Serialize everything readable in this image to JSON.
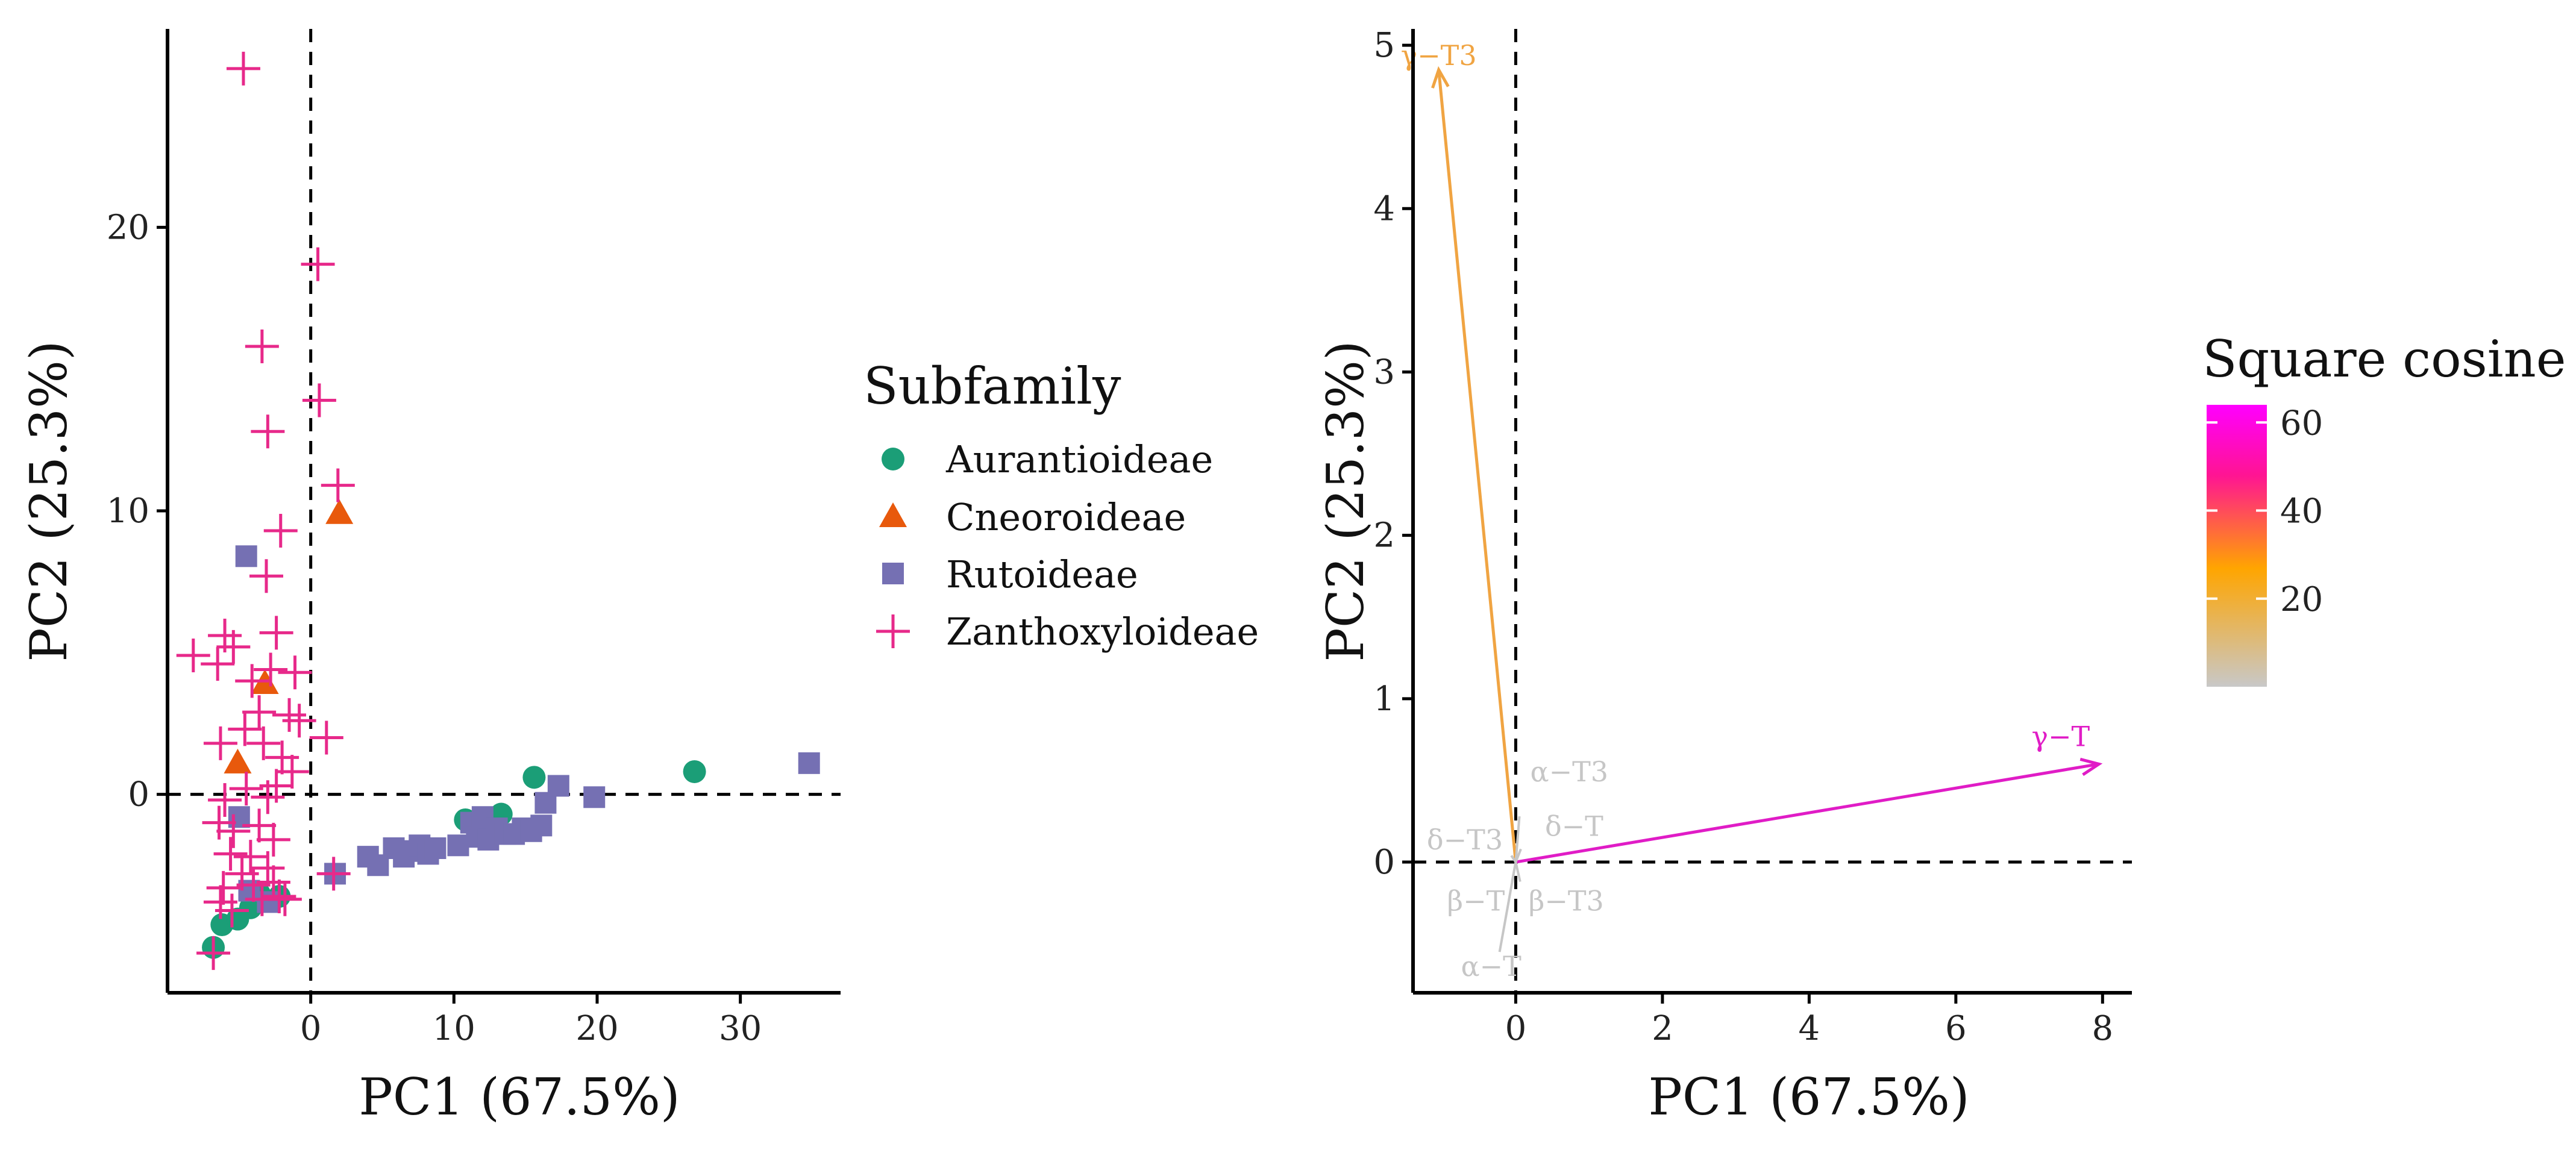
{
  "chart_data": [
    {
      "type": "scatter",
      "xlabel": "PC1 (67.5%)",
      "ylabel": "PC2 (25.3%)",
      "xlim": [
        -10,
        37
      ],
      "ylim": [
        -7,
        27
      ],
      "xticks": [
        0,
        10,
        20,
        30
      ],
      "yticks": [
        0,
        10,
        20
      ],
      "xtick_labels": [
        "0",
        "10",
        "20",
        "30"
      ],
      "ytick_labels": [
        "0",
        "10",
        "20"
      ],
      "reference_lines": {
        "x": 0,
        "y": 0
      },
      "legend": {
        "title": "Subfamily",
        "position": "right",
        "entries": [
          {
            "name": "Aurantioideae",
            "color": "#1b9e77",
            "marker": "circle"
          },
          {
            "name": "Cneoroideae",
            "color": "#e8590c",
            "marker": "triangle"
          },
          {
            "name": "Rutoideae",
            "color": "#7570b3",
            "marker": "square"
          },
          {
            "name": "Zanthoxyloideae",
            "color": "#e7298a",
            "marker": "plus"
          }
        ]
      },
      "series": [
        {
          "name": "Aurantioideae",
          "points": [
            [
              -6.8,
              -5.4
            ],
            [
              -6.2,
              -4.6
            ],
            [
              -5.1,
              -4.4
            ],
            [
              -4.2,
              -4.0
            ],
            [
              -3.6,
              -3.5
            ],
            [
              -2.2,
              -3.6
            ],
            [
              10.8,
              -0.9
            ],
            [
              13.3,
              -0.7
            ],
            [
              15.6,
              0.6
            ],
            [
              26.8,
              0.8
            ]
          ]
        },
        {
          "name": "Cneoroideae",
          "points": [
            [
              -5.1,
              1.1
            ],
            [
              -3.2,
              3.9
            ],
            [
              2.0,
              9.9
            ]
          ]
        },
        {
          "name": "Rutoideae",
          "points": [
            [
              -4.5,
              8.4
            ],
            [
              -5.0,
              -0.8
            ],
            [
              -4.3,
              -3.4
            ],
            [
              -3.0,
              -3.8
            ],
            [
              1.7,
              -2.8
            ],
            [
              4.0,
              -2.2
            ],
            [
              4.7,
              -2.5
            ],
            [
              5.8,
              -1.9
            ],
            [
              6.5,
              -2.2
            ],
            [
              7.0,
              -2.0
            ],
            [
              7.6,
              -1.8
            ],
            [
              8.2,
              -2.1
            ],
            [
              8.7,
              -1.9
            ],
            [
              10.3,
              -1.8
            ],
            [
              11.2,
              -1.0
            ],
            [
              11.6,
              -1.5
            ],
            [
              12.0,
              -0.8
            ],
            [
              12.4,
              -1.6
            ],
            [
              13.0,
              -1.2
            ],
            [
              13.6,
              -1.4
            ],
            [
              14.2,
              -1.4
            ],
            [
              14.8,
              -1.2
            ],
            [
              15.4,
              -1.3
            ],
            [
              16.1,
              -1.1
            ],
            [
              16.4,
              -0.3
            ],
            [
              17.3,
              0.3
            ],
            [
              19.8,
              -0.1
            ],
            [
              34.8,
              1.1
            ]
          ]
        },
        {
          "name": "Zanthoxyloideae",
          "points": [
            [
              -4.7,
              25.6
            ],
            [
              0.5,
              18.7
            ],
            [
              -3.4,
              15.8
            ],
            [
              0.6,
              13.9
            ],
            [
              -3.0,
              12.8
            ],
            [
              1.9,
              10.9
            ],
            [
              -2.1,
              9.3
            ],
            [
              -3.1,
              7.7
            ],
            [
              -6.0,
              5.6
            ],
            [
              -5.4,
              5.2
            ],
            [
              -2.4,
              5.7
            ],
            [
              -8.2,
              4.9
            ],
            [
              -6.5,
              4.6
            ],
            [
              -4.1,
              4.0
            ],
            [
              -2.8,
              4.4
            ],
            [
              -1.1,
              4.3
            ],
            [
              -4.6,
              2.3
            ],
            [
              -3.6,
              2.9
            ],
            [
              -1.5,
              2.8
            ],
            [
              -0.8,
              2.6
            ],
            [
              1.1,
              2.0
            ],
            [
              -6.3,
              1.8
            ],
            [
              -3.3,
              1.8
            ],
            [
              -2.0,
              1.3
            ],
            [
              -1.3,
              0.8
            ],
            [
              -6.0,
              -0.2
            ],
            [
              -4.5,
              0.2
            ],
            [
              -3.0,
              -0.1
            ],
            [
              -2.4,
              0.3
            ],
            [
              -6.4,
              -1.0
            ],
            [
              -5.4,
              -1.3
            ],
            [
              -3.6,
              -1.1
            ],
            [
              -2.6,
              -1.6
            ],
            [
              -5.6,
              -2.1
            ],
            [
              -4.2,
              -2.2
            ],
            [
              -3.0,
              -2.6
            ],
            [
              -4.8,
              -2.8
            ],
            [
              -6.1,
              -3.3
            ],
            [
              -4.0,
              -3.2
            ],
            [
              -2.6,
              -3.1
            ],
            [
              -3.4,
              -3.7
            ],
            [
              -2.2,
              -3.6
            ],
            [
              -1.8,
              -3.7
            ],
            [
              -5.5,
              -4.1
            ],
            [
              -6.3,
              -3.8
            ],
            [
              1.6,
              -2.8
            ],
            [
              -6.8,
              -5.6
            ]
          ]
        }
      ]
    },
    {
      "type": "biplot",
      "xlabel": "PC1 (67.5%)",
      "ylabel": "PC2 (25.3%)",
      "xlim": [
        -1.4,
        8.4
      ],
      "ylim": [
        -0.8,
        5.1
      ],
      "xticks": [
        0,
        2,
        4,
        6,
        8
      ],
      "yticks": [
        0,
        1,
        2,
        3,
        4,
        5
      ],
      "xtick_labels": [
        "0",
        "2",
        "4",
        "6",
        "8"
      ],
      "ytick_labels": [
        "0",
        "1",
        "2",
        "3",
        "4",
        "5"
      ],
      "reference_lines": {
        "x": 0,
        "y": 0
      },
      "colorbar": {
        "title": "Square cosine",
        "position": "right",
        "ticks": [
          20,
          40,
          60
        ],
        "tick_labels": [
          "20",
          "40",
          "60"
        ],
        "range": [
          0,
          64
        ],
        "colors": [
          "#c8c8c8",
          "#ffa500",
          "#ff1493",
          "#ff00ff"
        ]
      },
      "vectors": [
        {
          "name": "γ−T3",
          "x": -1.05,
          "y": 4.85,
          "cos2": 24,
          "color": "#f0a442"
        },
        {
          "name": "γ−T",
          "x": 7.95,
          "y": 0.6,
          "cos2": 64,
          "color": "#e01cc6"
        },
        {
          "name": "α−T3",
          "x": 0.05,
          "y": 0.28,
          "cos2": 1,
          "color": "#c6c6c6"
        },
        {
          "name": "δ−T",
          "x": 0.07,
          "y": 0.08,
          "cos2": 1,
          "color": "#c6c6c6"
        },
        {
          "name": "δ−T3",
          "x": -0.06,
          "y": 0.04,
          "cos2": 1,
          "color": "#c6c6c6"
        },
        {
          "name": "β−T",
          "x": -0.05,
          "y": -0.12,
          "cos2": 1,
          "color": "#c6c6c6"
        },
        {
          "name": "β−T3",
          "x": 0.06,
          "y": -0.12,
          "cos2": 1,
          "color": "#c6c6c6"
        },
        {
          "name": "α−T",
          "x": -0.22,
          "y": -0.55,
          "cos2": 1,
          "color": "#c6c6c6"
        }
      ]
    }
  ]
}
